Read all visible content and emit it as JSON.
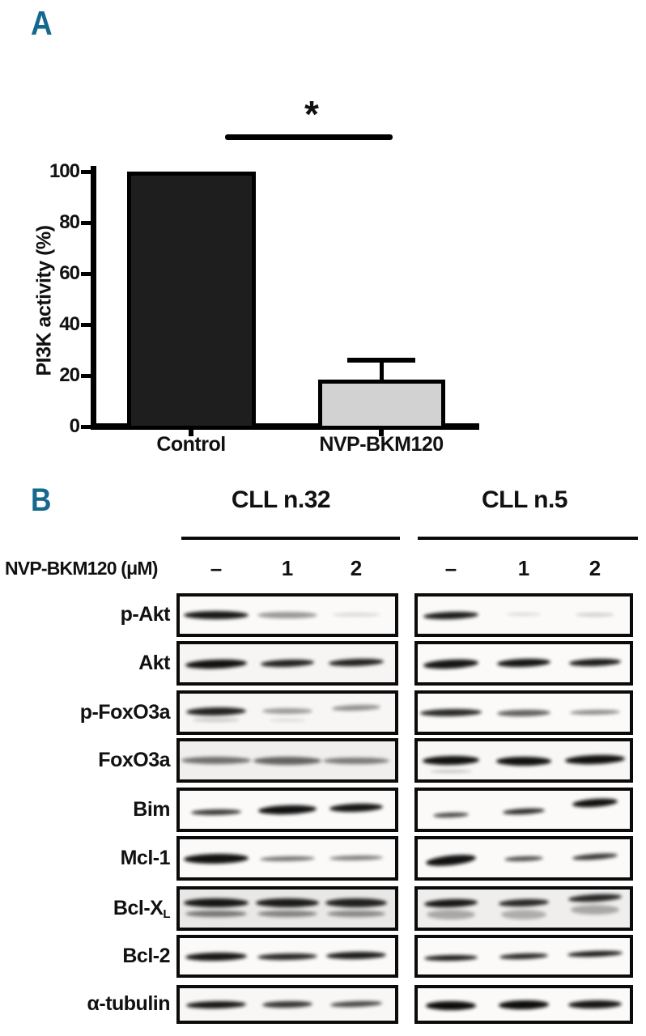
{
  "panel_a": {
    "label": "A"
  },
  "panel_b": {
    "label": "B"
  },
  "accent_color": "#15688e",
  "chart_data": {
    "type": "bar",
    "categories": [
      "Control",
      "NVP-BKM120"
    ],
    "values": [
      100,
      18.5
    ],
    "error_plus": [
      0,
      7.5
    ],
    "title": "",
    "xlabel": "",
    "ylabel": "PI3K activity (%)",
    "ylim": [
      0,
      100
    ],
    "yticks": [
      0,
      20,
      40,
      60,
      80,
      100
    ],
    "bar_colors": [
      "#1e1e1e",
      "#d2d2d2"
    ],
    "bar_border_color": "#000000",
    "grid": false,
    "legend": false,
    "significance": {
      "label": "*",
      "between": [
        "Control",
        "NVP-BKM120"
      ]
    }
  },
  "blots": {
    "treatment_label": "NVP-BKM120 (μM)",
    "doses": [
      "–",
      "1",
      "2"
    ],
    "groups": [
      "CLL n.32",
      "CLL n.5"
    ],
    "band_color": "#050505",
    "rows": [
      {
        "protein": "p-Akt",
        "bgL": "#fbfaf9",
        "bgR": "#fbfaf9",
        "L": [
          [
            80,
            10,
            0,
            0.92,
            0
          ],
          [
            74,
            8,
            0,
            0.4,
            0
          ],
          [
            60,
            5,
            -1,
            0.13,
            0
          ]
        ],
        "R": [
          [
            68,
            9,
            0,
            0.9,
            -2
          ],
          [
            44,
            4,
            -1,
            0.12,
            0
          ],
          [
            48,
            5,
            -1,
            0.17,
            0
          ]
        ]
      },
      {
        "protein": "Akt",
        "bgL": "#f6f5f3",
        "bgR": "#fbfaf9",
        "L": [
          [
            76,
            11,
            1,
            0.95,
            -2
          ],
          [
            66,
            9,
            0,
            0.88,
            -2
          ],
          [
            68,
            9,
            -1,
            0.88,
            -2
          ]
        ],
        "R": [
          [
            68,
            11,
            1,
            0.93,
            -3
          ],
          [
            66,
            10,
            -1,
            0.93,
            -2
          ],
          [
            64,
            9,
            -1,
            0.9,
            -2
          ]
        ]
      },
      {
        "protein": "p-FoxO3a",
        "bgL": "#f7f6f4",
        "bgR": "#fbfaf9",
        "L": [
          [
            74,
            10,
            -2,
            0.88,
            -1
          ],
          [
            62,
            7,
            -2,
            0.38,
            0
          ],
          [
            60,
            7,
            -6,
            0.42,
            -2
          ]
        ],
        "L2": [
          [
            58,
            5,
            9,
            0.18,
            0
          ],
          [
            46,
            4,
            9,
            0.1,
            0
          ],
          null
        ],
        "R": [
          [
            76,
            9,
            0,
            0.85,
            -1
          ],
          [
            66,
            8,
            0,
            0.62,
            -1
          ],
          [
            62,
            6,
            -1,
            0.45,
            -1
          ]
        ]
      },
      {
        "protein": "FoxO3a",
        "bgL": "#f0efed",
        "bgR": "#f8f7f5",
        "L": [
          [
            86,
            9,
            0,
            0.55,
            0
          ],
          [
            84,
            10,
            0,
            0.6,
            0
          ],
          [
            82,
            8,
            0,
            0.5,
            0
          ]
        ],
        "R": [
          [
            70,
            11,
            0,
            0.95,
            -1
          ],
          [
            68,
            11,
            1,
            0.95,
            0
          ],
          [
            74,
            11,
            -1,
            0.95,
            -2
          ]
        ],
        "R2": [
          [
            52,
            4,
            13,
            0.2,
            0
          ],
          null,
          null
        ]
      },
      {
        "protein": "Bim",
        "bgL": "#fbfaf9",
        "bgR": "#fbfaf9",
        "L": [
          [
            62,
            7,
            3,
            0.78,
            -1
          ],
          [
            72,
            11,
            0,
            0.95,
            -2
          ],
          [
            66,
            10,
            -3,
            0.93,
            -2
          ]
        ],
        "R": [
          [
            44,
            6,
            6,
            0.72,
            -2
          ],
          [
            52,
            7,
            2,
            0.82,
            -3
          ],
          [
            56,
            10,
            -9,
            0.95,
            -4
          ]
        ]
      },
      {
        "protein": "Mcl-1",
        "bgL": "#fbfaf9",
        "bgR": "#fbfaf9",
        "L": [
          [
            80,
            12,
            0,
            0.95,
            -1
          ],
          [
            68,
            6,
            0,
            0.55,
            -1
          ],
          [
            66,
            6,
            -1,
            0.5,
            -1
          ]
        ],
        "R": [
          [
            62,
            12,
            2,
            0.95,
            -6
          ],
          [
            48,
            6,
            0,
            0.7,
            -2
          ],
          [
            56,
            7,
            -2,
            0.78,
            -4
          ]
        ]
      },
      {
        "protein": "Bcl-X",
        "sub": "L",
        "bgL": "#e9e8e6",
        "bgR": "#efeeec",
        "L": [
          [
            80,
            11,
            -7,
            0.92,
            0
          ],
          [
            78,
            11,
            -7,
            0.9,
            0
          ],
          [
            76,
            11,
            -7,
            0.88,
            0
          ]
        ],
        "L2": [
          [
            76,
            8,
            6,
            0.5,
            0
          ],
          [
            74,
            8,
            6,
            0.45,
            0
          ],
          [
            72,
            8,
            6,
            0.42,
            0
          ]
        ],
        "R": [
          [
            66,
            10,
            -7,
            0.92,
            -2
          ],
          [
            62,
            9,
            -7,
            0.85,
            -2
          ],
          [
            66,
            9,
            -13,
            0.85,
            -3
          ]
        ],
        "R2": [
          [
            60,
            12,
            7,
            0.3,
            0
          ],
          [
            56,
            12,
            7,
            0.28,
            0
          ],
          [
            60,
            12,
            1,
            0.3,
            0
          ]
        ]
      },
      {
        "protein": "Bcl-2",
        "bgL": "#fbfaf9",
        "bgR": "#fbfaf9",
        "L": [
          [
            76,
            10,
            0,
            0.93,
            -1
          ],
          [
            74,
            8,
            0,
            0.85,
            -1
          ],
          [
            74,
            9,
            -1,
            0.9,
            -1
          ]
        ],
        "R": [
          [
            66,
            7,
            2,
            0.9,
            -1
          ],
          [
            60,
            7,
            0,
            0.85,
            -2
          ],
          [
            68,
            7,
            -3,
            0.9,
            -2
          ]
        ]
      },
      {
        "protein": "α-tubulin",
        "bgL": "#f8f7f5",
        "bgR": "#fbfaf9",
        "L": [
          [
            74,
            9,
            0,
            0.93,
            -1
          ],
          [
            62,
            8,
            0,
            0.8,
            -1
          ],
          [
            64,
            7,
            -1,
            0.72,
            -2
          ]
        ],
        "R": [
          [
            62,
            11,
            1,
            0.97,
            0
          ],
          [
            62,
            11,
            0,
            0.97,
            -1
          ],
          [
            66,
            10,
            0,
            0.93,
            -1
          ]
        ]
      }
    ]
  }
}
